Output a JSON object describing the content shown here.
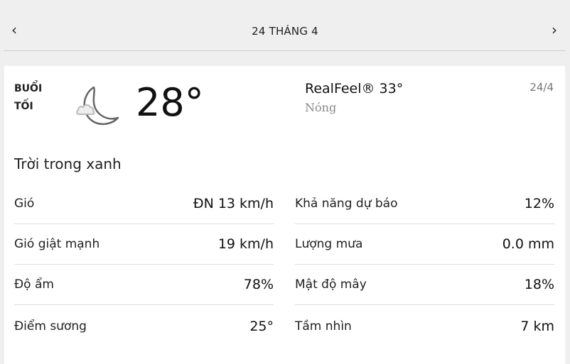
{
  "nav": {
    "title": "24 THÁNG 4",
    "prev_icon": "chevron-left-icon",
    "next_icon": "chevron-right-icon"
  },
  "current": {
    "period_line1": "BUỔI",
    "period_line2": "TỐI",
    "icon": "moon-cloud-icon",
    "temperature": "28°",
    "realfeel": "RealFeel® 33°",
    "realfeel_phrase": "Nóng",
    "date": "24/4",
    "condition": "Trời trong xanh"
  },
  "details_left": [
    {
      "label": "Gió",
      "value": "ĐN 13 km/h"
    },
    {
      "label": "Gió giật mạnh",
      "value": "19 km/h"
    },
    {
      "label": "Độ ẩm",
      "value": "78%"
    },
    {
      "label": "Điểm sương",
      "value": "25°"
    }
  ],
  "details_right": [
    {
      "label": "Khả năng dự báo",
      "value": "12%"
    },
    {
      "label": "Lượng mưa",
      "value": "0.0 mm"
    },
    {
      "label": "Mật độ mây",
      "value": "18%"
    },
    {
      "label": "Tầm nhìn",
      "value": "7 km"
    }
  ]
}
